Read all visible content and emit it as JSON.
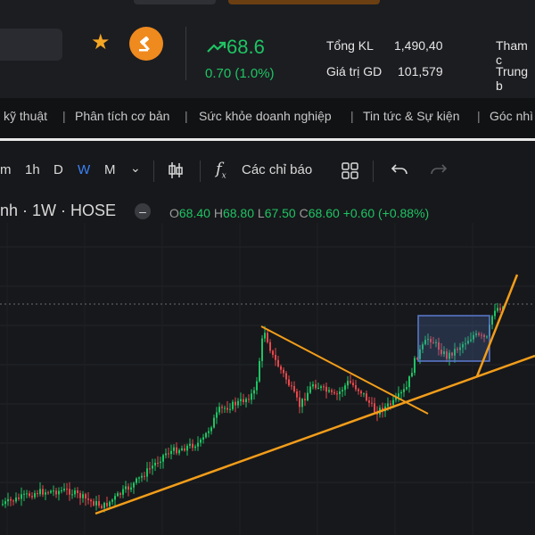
{
  "header": {
    "price": "68.6",
    "change": "0.70 (1.0%)",
    "stats": [
      {
        "label": "Tổng KL",
        "value": "1,490,40"
      },
      {
        "label": "Giá trị GD",
        "value": "101,579"
      }
    ],
    "cut_labels": [
      "Tham c",
      "Trung b"
    ],
    "icons": {
      "watch": "star-icon",
      "auction": "gavel-icon",
      "trend": "trend-up-icon"
    },
    "colors": {
      "up": "#1ec463",
      "down": "#e5484d",
      "accent": "#ef8a1e",
      "star": "#f5a623"
    }
  },
  "nav": {
    "items": [
      "kỹ thuật",
      "Phân tích cơ bản",
      "Sức khỏe doanh nghiệp",
      "Tin tức & Sự kiện",
      "Góc nhì"
    ]
  },
  "toolbar": {
    "intervals": [
      "m",
      "1h",
      "D",
      "W",
      "M"
    ],
    "active_interval": "W",
    "indicators_label": "Các chỉ báo"
  },
  "symbol": {
    "text": "nh · 1W · HOSE",
    "ohlc": {
      "o_label": "O",
      "o": "68.40",
      "h_label": "H",
      "h": "68.80",
      "l_label": "L",
      "l": "67.50",
      "c_label": "C",
      "c": "68.60",
      "chg": "+0.60 (+0.88%)"
    }
  },
  "chart_data": {
    "type": "candlestick",
    "interval": "1W",
    "exchange": "HOSE",
    "last_price": 68.6,
    "grid": true,
    "annotations": [
      "ascending support trendline",
      "descending triangle line",
      "consolidation rectangle",
      "steep breakout trendline"
    ]
  }
}
